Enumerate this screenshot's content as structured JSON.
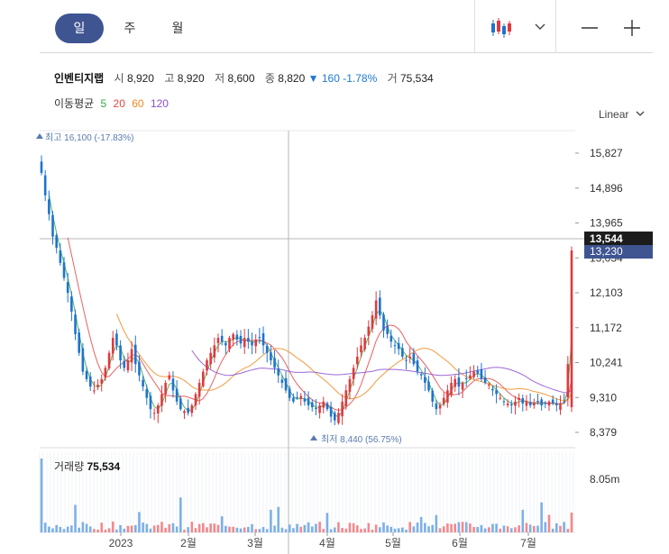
{
  "tabs": [
    {
      "label": "일",
      "active": true
    },
    {
      "label": "주",
      "active": false
    },
    {
      "label": "월",
      "active": false
    }
  ],
  "header": {
    "name": "인벤티지랩",
    "open_label": "시",
    "open": "8,920",
    "high_label": "고",
    "high": "8,920",
    "low_label": "저",
    "low": "8,600",
    "close_label": "종",
    "close": "8,820",
    "change_arrow": "▼",
    "change": "160",
    "change_pct": "-1.78%",
    "volume_label": "거",
    "volume": "75,534"
  },
  "moving_average": {
    "label": "이동평균",
    "periods": [
      {
        "period": "5",
        "color": "#3aa845"
      },
      {
        "period": "20",
        "color": "#e84545"
      },
      {
        "period": "60",
        "color": "#f08a1d"
      },
      {
        "period": "120",
        "color": "#8a4fd0"
      }
    ]
  },
  "scale_label": "Linear",
  "colors": {
    "up": "#e0393e",
    "down": "#1f73cf",
    "accent": "#3f5591",
    "annotation": "#5a7ab0"
  },
  "chart_data": {
    "type": "candlestick",
    "price_axis": {
      "ticks": [
        "15,827",
        "14,896",
        "13,965",
        "13,034",
        "12,103",
        "11,172",
        "10,241",
        "9,310",
        "8,379"
      ],
      "range": [
        8379,
        15827
      ]
    },
    "x_labels": [
      "2023",
      "2월",
      "3월",
      "4월",
      "5월",
      "6월",
      "7월"
    ],
    "crosshair_price": "13,544",
    "current_price": "13,230",
    "high_marker": {
      "label": "최고",
      "value": "16,100",
      "pct": "(-17.83%)",
      "price": 16100
    },
    "low_marker": {
      "label": "최저",
      "value": "8,440",
      "pct": "(56.75%)",
      "price": 8440
    },
    "volume": {
      "label": "거래량",
      "value": "75,534",
      "axis_tick": "8.05m"
    },
    "closes": [
      15300,
      14700,
      14200,
      13600,
      13300,
      12900,
      12500,
      12100,
      11600,
      11000,
      10500,
      10000,
      9800,
      9600,
      9500,
      9650,
      9800,
      10100,
      10500,
      10900,
      10700,
      10300,
      10100,
      10300,
      10600,
      10200,
      9900,
      9600,
      9300,
      9000,
      8900,
      9100,
      9400,
      9700,
      9900,
      9500,
      9200,
      9000,
      8950,
      8900,
      9100,
      9400,
      9700,
      10000,
      10300,
      10500,
      10700,
      10900,
      10800,
      10700,
      10900,
      11000,
      10850,
      10750,
      10900,
      10800,
      10700,
      10850,
      10900,
      10700,
      10500,
      10300,
      10100,
      9900,
      9700,
      9500,
      9300,
      9200,
      9300,
      9350,
      9200,
      9100,
      9050,
      9000,
      9100,
      9200,
      9000,
      8800,
      8700,
      8900,
      9200,
      9500,
      9800,
      10100,
      10400,
      10700,
      10900,
      11200,
      11500,
      11900,
      11500,
      11100,
      11000,
      10800,
      10700,
      10600,
      10400,
      10300,
      10400,
      10200,
      10000,
      9900,
      9700,
      9500,
      9200,
      9000,
      9100,
      9300,
      9500,
      9700,
      9800,
      9600,
      9700,
      9800,
      9900,
      10000,
      9950,
      9800,
      9700,
      9650,
      9500,
      9400,
      9300,
      9200,
      9150,
      9100,
      9200,
      9300,
      9150,
      9200,
      9100,
      9150,
      9200,
      9100,
      9150,
      9200,
      9150,
      9100,
      9150,
      9200,
      10200,
      13230
    ]
  }
}
